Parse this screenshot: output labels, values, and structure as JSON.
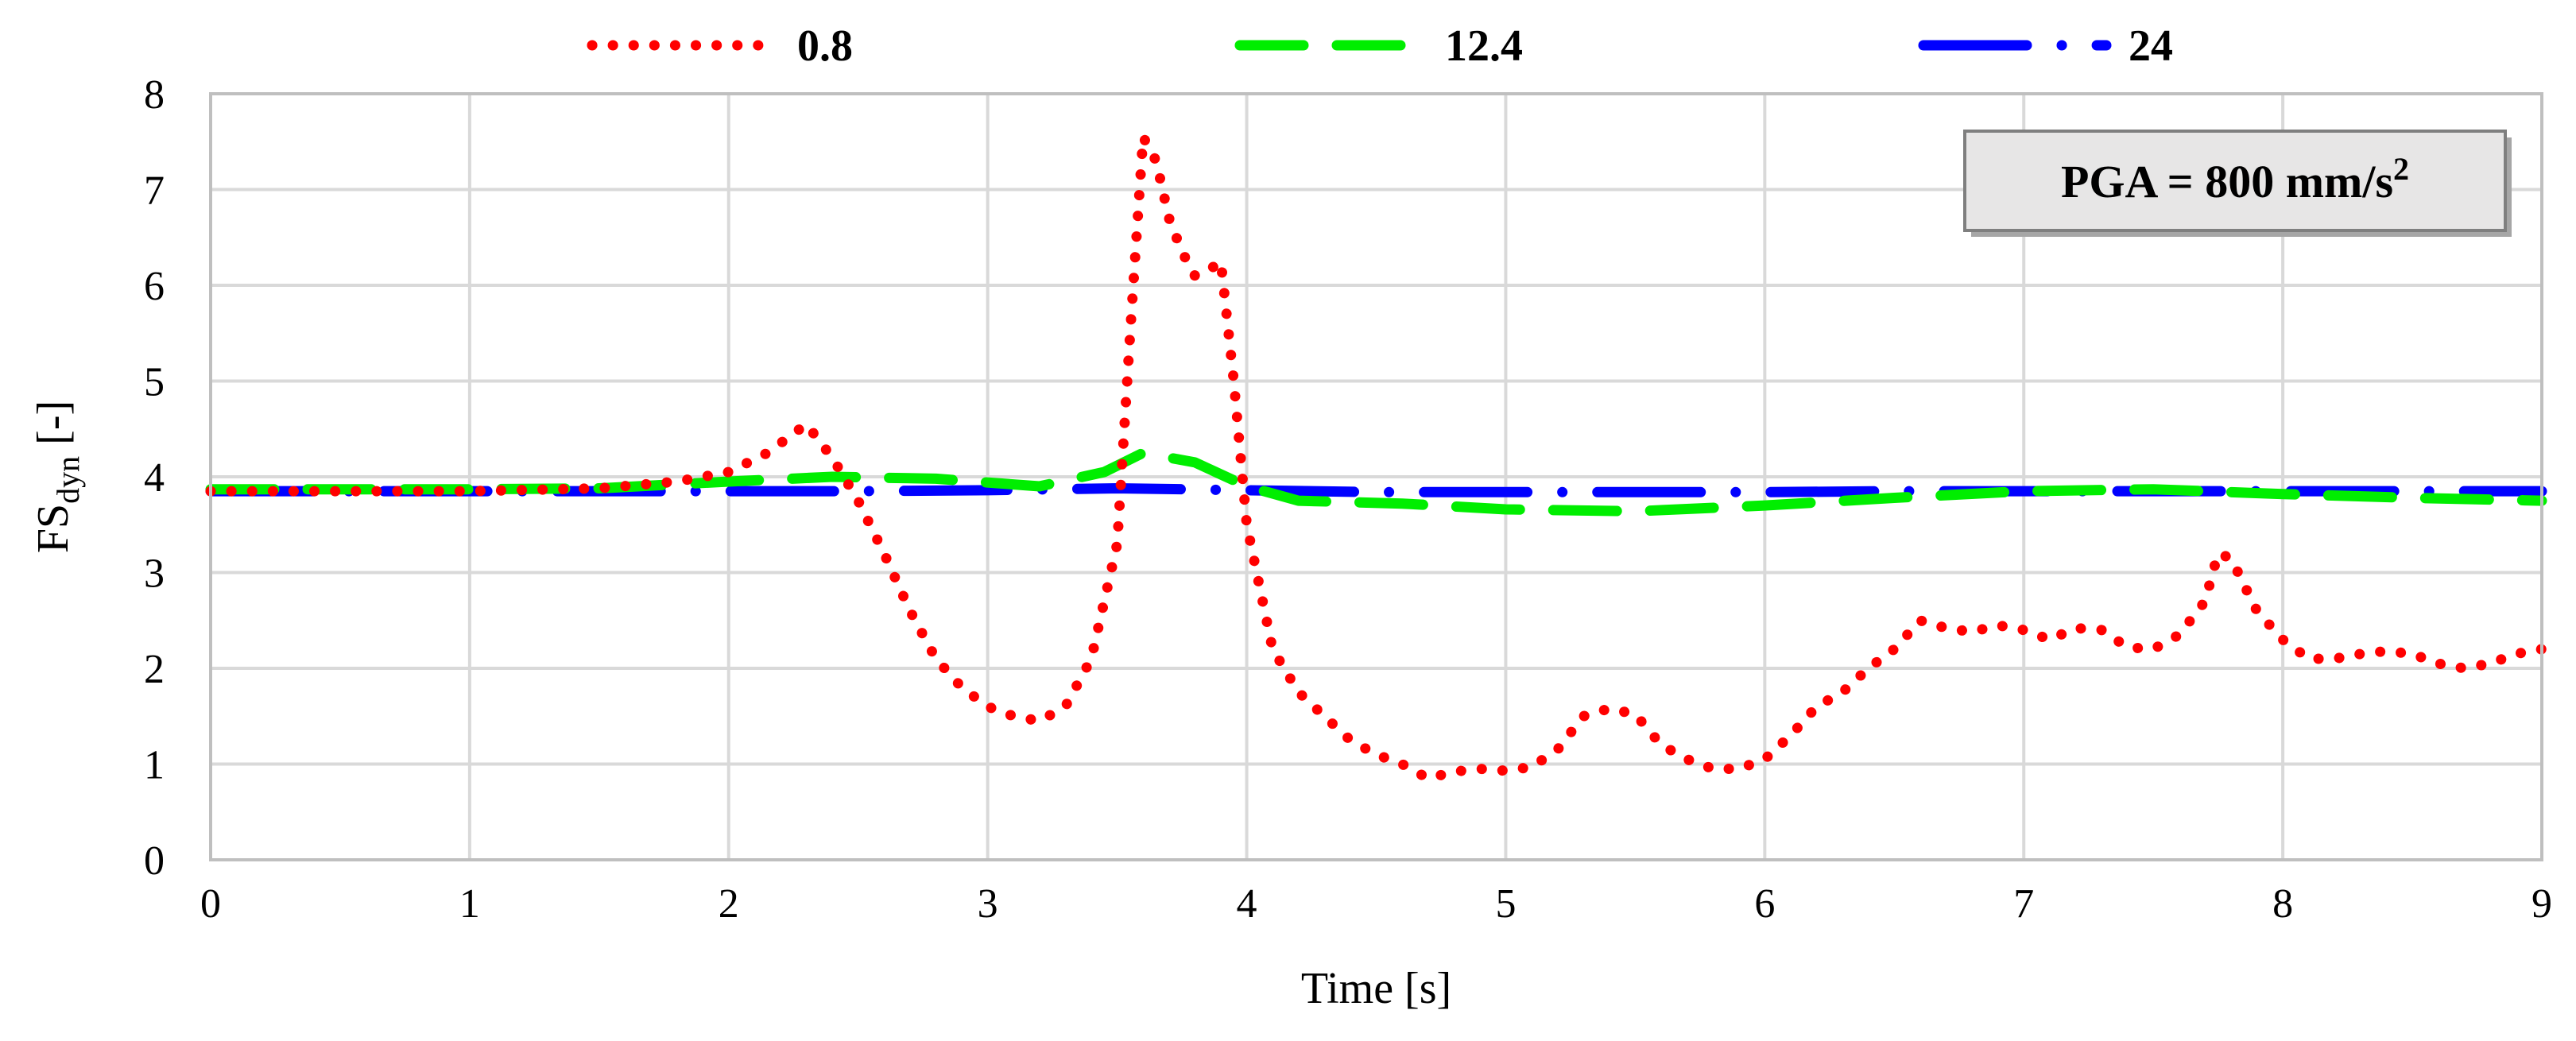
{
  "chart_data": {
    "type": "line",
    "xlabel": "Time [s]",
    "ylabel": {
      "base": "FS",
      "sub": "dyn",
      "unit": "[-]"
    },
    "xlim": [
      0,
      9
    ],
    "ylim": [
      0,
      8
    ],
    "xticks": [
      "0",
      "1",
      "2",
      "3",
      "4",
      "5",
      "6",
      "7",
      "8",
      "9"
    ],
    "yticks": [
      "0",
      "1",
      "2",
      "3",
      "4",
      "5",
      "6",
      "7",
      "8"
    ],
    "grid": true,
    "legend_position": "top",
    "annotation": {
      "text": "PGA = 800 mm/s",
      "sup": "2",
      "position": "top-right"
    },
    "series": [
      {
        "name": "0.8",
        "color": "#ff0000",
        "style": "dotted",
        "points": [
          [
            0,
            3.85
          ],
          [
            0.5,
            3.85
          ],
          [
            1.0,
            3.85
          ],
          [
            1.5,
            3.88
          ],
          [
            1.8,
            3.95
          ],
          [
            2.0,
            4.05
          ],
          [
            2.15,
            4.25
          ],
          [
            2.3,
            4.55
          ],
          [
            2.4,
            4.2
          ],
          [
            2.5,
            3.75
          ],
          [
            2.6,
            3.2
          ],
          [
            2.7,
            2.6
          ],
          [
            2.8,
            2.1
          ],
          [
            2.9,
            1.8
          ],
          [
            3.0,
            1.6
          ],
          [
            3.1,
            1.5
          ],
          [
            3.2,
            1.45
          ],
          [
            3.3,
            1.6
          ],
          [
            3.4,
            2.1
          ],
          [
            3.5,
            3.3
          ],
          [
            3.55,
            5.5
          ],
          [
            3.6,
            7.55
          ],
          [
            3.65,
            7.3
          ],
          [
            3.7,
            6.7
          ],
          [
            3.75,
            6.35
          ],
          [
            3.8,
            6.1
          ],
          [
            3.85,
            6.15
          ],
          [
            3.9,
            6.25
          ],
          [
            3.95,
            5.0
          ],
          [
            4.0,
            3.5
          ],
          [
            4.1,
            2.2
          ],
          [
            4.2,
            1.75
          ],
          [
            4.3,
            1.5
          ],
          [
            4.4,
            1.25
          ],
          [
            4.5,
            1.1
          ],
          [
            4.6,
            1.0
          ],
          [
            4.7,
            0.85
          ],
          [
            4.8,
            0.92
          ],
          [
            4.9,
            0.95
          ],
          [
            5.0,
            0.93
          ],
          [
            5.1,
            0.97
          ],
          [
            5.2,
            1.15
          ],
          [
            5.3,
            1.5
          ],
          [
            5.4,
            1.58
          ],
          [
            5.5,
            1.52
          ],
          [
            5.6,
            1.2
          ],
          [
            5.7,
            1.05
          ],
          [
            5.8,
            0.95
          ],
          [
            5.9,
            0.95
          ],
          [
            6.0,
            1.05
          ],
          [
            6.1,
            1.3
          ],
          [
            6.2,
            1.6
          ],
          [
            6.3,
            1.75
          ],
          [
            6.4,
            2.0
          ],
          [
            6.5,
            2.2
          ],
          [
            6.6,
            2.5
          ],
          [
            6.7,
            2.42
          ],
          [
            6.8,
            2.38
          ],
          [
            6.9,
            2.45
          ],
          [
            7.0,
            2.4
          ],
          [
            7.1,
            2.3
          ],
          [
            7.2,
            2.42
          ],
          [
            7.3,
            2.4
          ],
          [
            7.4,
            2.22
          ],
          [
            7.5,
            2.2
          ],
          [
            7.6,
            2.35
          ],
          [
            7.7,
            2.7
          ],
          [
            7.75,
            3.2
          ],
          [
            7.8,
            3.15
          ],
          [
            7.9,
            2.6
          ],
          [
            8.0,
            2.3
          ],
          [
            8.1,
            2.1
          ],
          [
            8.2,
            2.1
          ],
          [
            8.3,
            2.15
          ],
          [
            8.4,
            2.18
          ],
          [
            8.5,
            2.15
          ],
          [
            8.6,
            2.05
          ],
          [
            8.7,
            2.0
          ],
          [
            8.8,
            2.05
          ],
          [
            8.9,
            2.15
          ],
          [
            9.0,
            2.2
          ]
        ]
      },
      {
        "name": "12.4",
        "color": "#00ee00",
        "style": "dashed",
        "points": [
          [
            0,
            3.87
          ],
          [
            1.0,
            3.87
          ],
          [
            1.5,
            3.88
          ],
          [
            2.0,
            3.95
          ],
          [
            2.4,
            4.0
          ],
          [
            2.8,
            3.98
          ],
          [
            3.2,
            3.9
          ],
          [
            3.45,
            4.05
          ],
          [
            3.6,
            4.25
          ],
          [
            3.8,
            4.15
          ],
          [
            4.0,
            3.9
          ],
          [
            4.2,
            3.75
          ],
          [
            4.6,
            3.72
          ],
          [
            5.0,
            3.66
          ],
          [
            5.5,
            3.64
          ],
          [
            6.0,
            3.7
          ],
          [
            6.5,
            3.78
          ],
          [
            7.0,
            3.85
          ],
          [
            7.5,
            3.87
          ],
          [
            8.0,
            3.82
          ],
          [
            8.5,
            3.78
          ],
          [
            9.0,
            3.75
          ]
        ]
      },
      {
        "name": "24",
        "color": "#0000ff",
        "style": "dash-dot",
        "points": [
          [
            0,
            3.85
          ],
          [
            2.0,
            3.85
          ],
          [
            2.5,
            3.85
          ],
          [
            3.0,
            3.86
          ],
          [
            3.5,
            3.88
          ],
          [
            4.0,
            3.86
          ],
          [
            4.5,
            3.84
          ],
          [
            5.0,
            3.84
          ],
          [
            5.5,
            3.84
          ],
          [
            6.0,
            3.84
          ],
          [
            6.5,
            3.85
          ],
          [
            7.0,
            3.85
          ],
          [
            7.5,
            3.85
          ],
          [
            8.0,
            3.85
          ],
          [
            8.5,
            3.85
          ],
          [
            9.0,
            3.85
          ]
        ]
      }
    ]
  }
}
